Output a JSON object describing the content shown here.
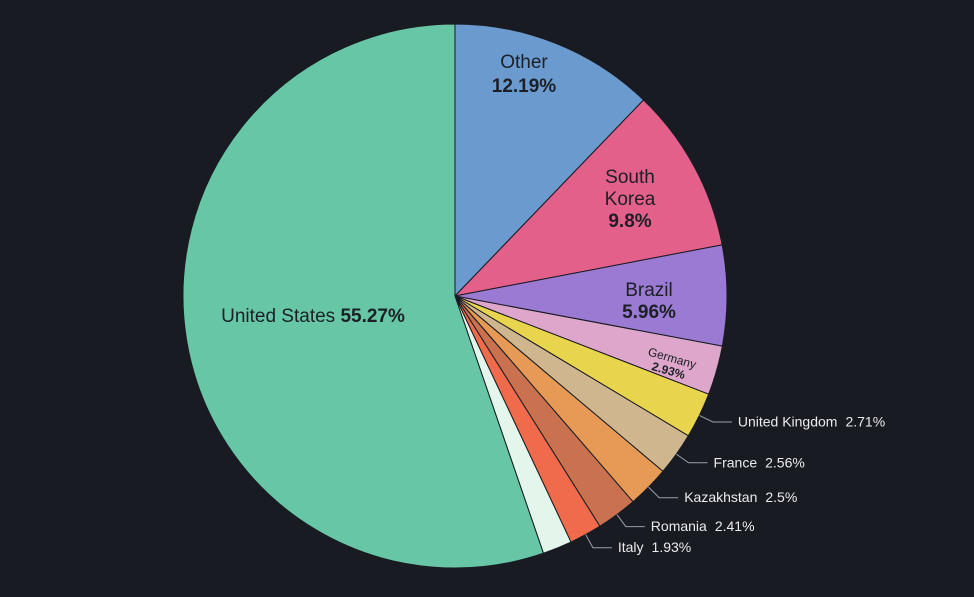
{
  "page": {
    "background": "#191b22"
  },
  "chart_data": {
    "type": "pie",
    "direction": "clockwise",
    "start_angle_deg": 0,
    "legend_position": "none",
    "inside_text_color": "#1c2026",
    "outside_text_color": "#e9ebee",
    "leader_line_color": "#9aa0a8",
    "slice_border_color": "#191b22",
    "slices": [
      {
        "label": "Other",
        "value": 12.19,
        "pct": "12.19%",
        "color": "#6a9ace",
        "label_pos": "inside"
      },
      {
        "label": "South Korea",
        "label_lines": [
          "South",
          "Korea"
        ],
        "value": 9.8,
        "pct": "9.8%",
        "color": "#e2608a",
        "label_pos": "inside"
      },
      {
        "label": "Brazil",
        "value": 5.96,
        "pct": "5.96%",
        "color": "#9a7ad2",
        "label_pos": "inside"
      },
      {
        "label": "Germany",
        "value": 2.93,
        "pct": "2.93%",
        "color": "#dda6ca",
        "label_pos": "inside"
      },
      {
        "label": "United Kingdom",
        "value": 2.71,
        "pct": "2.71%",
        "color": "#e9d44e",
        "label_pos": "outside"
      },
      {
        "label": "France",
        "value": 2.56,
        "pct": "2.56%",
        "color": "#d0b68e",
        "label_pos": "outside"
      },
      {
        "label": "Kazakhstan",
        "value": 2.5,
        "pct": "2.5%",
        "color": "#e69a55",
        "label_pos": "outside"
      },
      {
        "label": "Romania",
        "value": 2.41,
        "pct": "2.41%",
        "color": "#ca7250",
        "label_pos": "outside"
      },
      {
        "label": "Italy",
        "value": 1.93,
        "pct": "1.93%",
        "color": "#ef6b4b",
        "label_pos": "outside"
      },
      {
        "label": "",
        "value": 1.74,
        "pct": "",
        "color": "#e4f6ec",
        "label_pos": "none"
      },
      {
        "label": "United States",
        "value": 55.27,
        "pct": "55.27%",
        "color": "#66c6a6",
        "label_pos": "inside"
      }
    ]
  }
}
